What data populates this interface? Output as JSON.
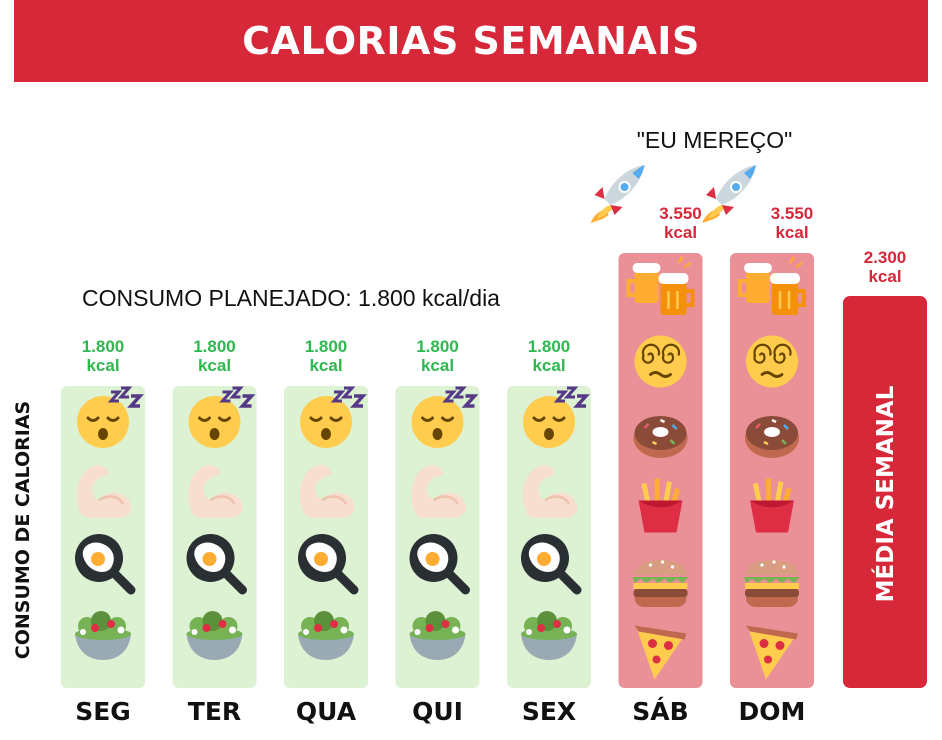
{
  "title": "CALORIAS SEMANAIS",
  "planned_text": "CONSUMO PLANEJADO: 1.800 kcal/dia",
  "annotation": "\"EU MEREÇO\"",
  "colors": {
    "banner": "#d62839",
    "weekday_bar": "#dcf2d2",
    "weekend_bar": "#e99197",
    "average_bar": "#d62839",
    "green_text": "#2fb84f",
    "red_text": "#d62839"
  },
  "chart_data": {
    "type": "bar",
    "title": "CALORIAS SEMANAIS",
    "ylabel": "CONSUMO DE CALORIAS",
    "xlabel": "",
    "categories": [
      "SEG",
      "TER",
      "QUA",
      "QUI",
      "SEX",
      "SÁB",
      "DOM"
    ],
    "values": [
      1800,
      1800,
      1800,
      1800,
      1800,
      3550,
      3550
    ],
    "value_labels": [
      [
        "1.800",
        "kcal"
      ],
      [
        "1.800",
        "kcal"
      ],
      [
        "1.800",
        "kcal"
      ],
      [
        "1.800",
        "kcal"
      ],
      [
        "1.800",
        "kcal"
      ],
      [
        "3.550",
        "kcal"
      ],
      [
        "3.550",
        "kcal"
      ]
    ],
    "average": {
      "label": "MÉDIA SEMANAL",
      "value": 2300,
      "value_label": [
        "2.300",
        "kcal"
      ]
    },
    "weekday_icons": [
      "sleeping-face-icon",
      "flexed-biceps-icon",
      "fried-egg-icon",
      "salad-icon"
    ],
    "weekend_icons": [
      "beer-mugs-icon",
      "dizzy-face-icon",
      "doughnut-icon",
      "fries-icon",
      "burger-icon",
      "pizza-icon"
    ],
    "weekend_extra_icon": "rocket-icon",
    "grid": false,
    "legend": "none"
  }
}
